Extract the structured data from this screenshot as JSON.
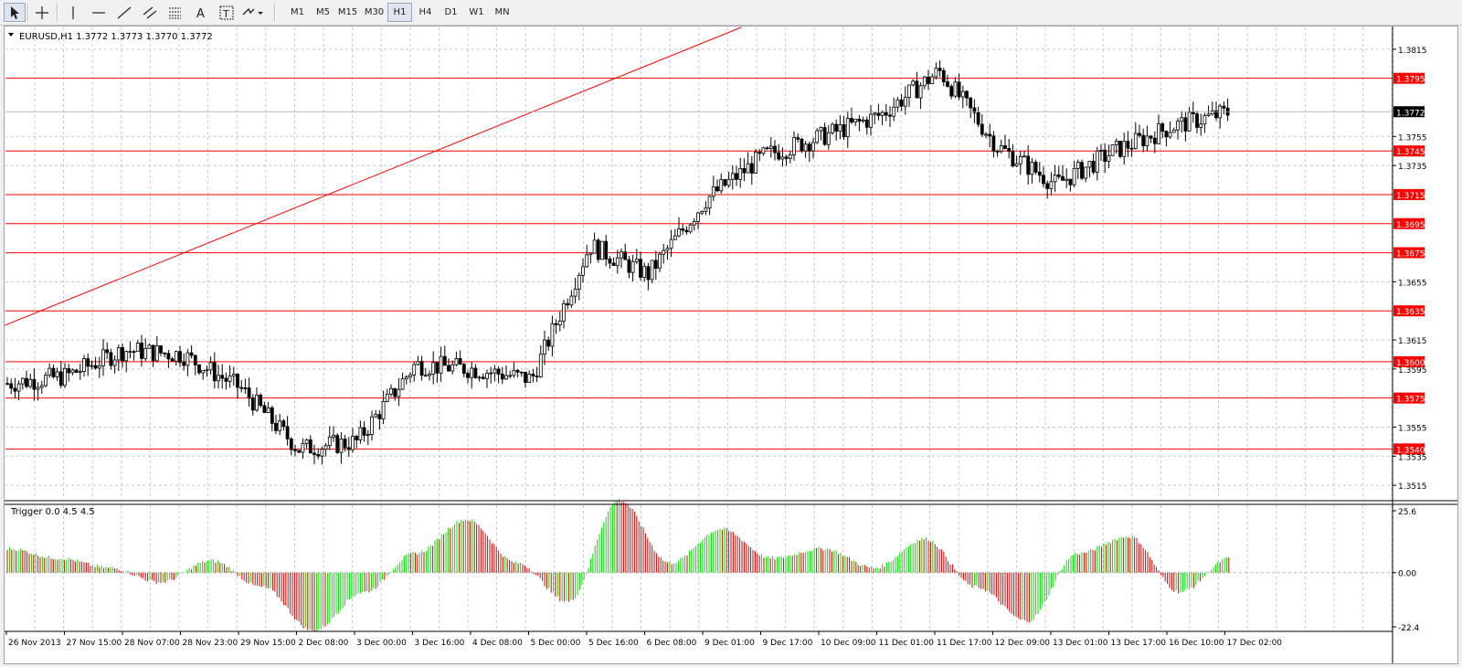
{
  "toolbar": {
    "tools": [
      {
        "name": "cursor-tool",
        "icon": "arrow-cursor-icon"
      },
      {
        "name": "crosshair-tool",
        "icon": "crosshair-icon"
      },
      {
        "name": "vertical-line-tool",
        "icon": "vertical-line-icon"
      },
      {
        "name": "horizontal-line-tool",
        "icon": "horizontal-line-icon"
      },
      {
        "name": "trendline-tool",
        "icon": "trendline-icon"
      },
      {
        "name": "equidistant-channel-tool",
        "icon": "channel-icon"
      },
      {
        "name": "fibonacci-tool",
        "icon": "fibonacci-icon"
      },
      {
        "name": "text-tool",
        "icon": "text-A-icon",
        "label": "A"
      },
      {
        "name": "text-label-tool",
        "icon": "text-label-icon",
        "label": "T"
      },
      {
        "name": "arrows-tool",
        "icon": "arrows-dropdown-icon"
      }
    ],
    "timeframes": [
      "M1",
      "M5",
      "M15",
      "M30",
      "H1",
      "H4",
      "D1",
      "W1",
      "MN"
    ],
    "active_timeframe": "H1"
  },
  "main_chart": {
    "title": "EURUSD,H1  1.3772 1.3773 1.3770 1.3772",
    "y_ticks": [
      "1.3815",
      "1.3755",
      "1.3735",
      "1.3655",
      "1.3615",
      "1.3595",
      "1.3555",
      "1.3535",
      "1.3515"
    ],
    "levels": [
      "1.3795",
      "1.3745",
      "1.3715",
      "1.3695",
      "1.3675",
      "1.3635",
      "1.3600",
      "1.3575",
      "1.3540"
    ],
    "current_price": "1.3772",
    "colors": {
      "bull_candle": "#ffffff",
      "bear_candle": "#000000",
      "level_line": "#ff0000",
      "trendline": "#ff0000",
      "price_tag": "#000000"
    }
  },
  "indicator": {
    "title": "Trigger 0.0 4.5 4.5",
    "y_ticks": [
      "25.6",
      "0.00",
      "-22.4"
    ],
    "colors": {
      "up": "#00e000",
      "down": "#e00000"
    }
  },
  "x_labels": [
    "26 Nov 2013",
    "27 Nov 15:00",
    "28 Nov 07:00",
    "28 Nov 23:00",
    "29 Nov 15:00",
    "2 Dec 08:00",
    "3 Dec 00:00",
    "3 Dec 16:00",
    "4 Dec 08:00",
    "5 Dec 00:00",
    "5 Dec 16:00",
    "6 Dec 08:00",
    "9 Dec 01:00",
    "9 Dec 17:00",
    "10 Dec 09:00",
    "11 Dec 01:00",
    "11 Dec 17:00",
    "12 Dec 09:00",
    "13 Dec 01:00",
    "13 Dec 17:00",
    "16 Dec 10:00",
    "17 Dec 02:00"
  ],
  "chart_data": {
    "type": "candlestick",
    "symbol": "EURUSD",
    "timeframe": "H1",
    "ohlc_last": {
      "open": 1.3772,
      "high": 1.3773,
      "low": 1.377,
      "close": 1.3772
    },
    "x": [
      "26 Nov 2013",
      "27 Nov 15:00",
      "28 Nov 07:00",
      "28 Nov 23:00",
      "29 Nov 15:00",
      "2 Dec 08:00",
      "3 Dec 00:00",
      "3 Dec 16:00",
      "4 Dec 08:00",
      "5 Dec 00:00",
      "5 Dec 16:00",
      "6 Dec 08:00",
      "9 Dec 01:00",
      "9 Dec 17:00",
      "10 Dec 09:00",
      "11 Dec 01:00",
      "11 Dec 17:00",
      "12 Dec 09:00",
      "13 Dec 01:00",
      "13 Dec 17:00",
      "16 Dec 10:00",
      "17 Dec 02:00"
    ],
    "close": [
      1.3585,
      1.359,
      1.3608,
      1.3605,
      1.3582,
      1.354,
      1.3545,
      1.3598,
      1.3595,
      1.3588,
      1.368,
      1.366,
      1.3712,
      1.3742,
      1.3755,
      1.377,
      1.38,
      1.3748,
      1.3722,
      1.3745,
      1.3762,
      1.3772
    ],
    "ylim": [
      1.3505,
      1.383
    ],
    "horizontal_levels": [
      1.3795,
      1.3745,
      1.3715,
      1.3695,
      1.3675,
      1.3635,
      1.36,
      1.3575,
      1.354
    ],
    "trendline": [
      {
        "x": "26 Nov 2013",
        "y": 1.3625
      },
      {
        "x": "9 Dec 17:00",
        "y": 1.383
      }
    ],
    "indicator": {
      "name": "Trigger 0.0 4.5 4.5",
      "values": [
        10,
        6,
        2,
        -4,
        5,
        -6,
        -24,
        -8,
        8,
        22,
        4,
        -12,
        30,
        4,
        18,
        6,
        10,
        2,
        14,
        -6,
        -20,
        8,
        15,
        -8,
        6
      ],
      "ylim": [
        -22.4,
        25.6
      ]
    }
  }
}
